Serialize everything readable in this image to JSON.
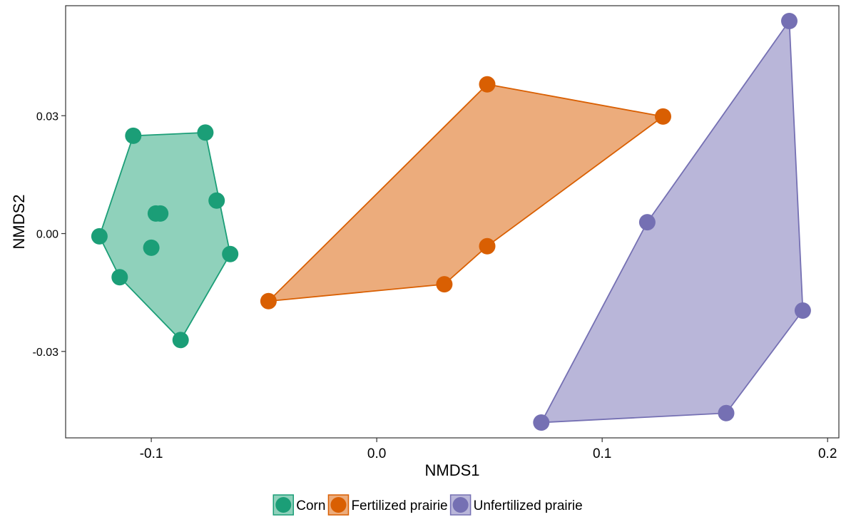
{
  "chart_data": {
    "type": "scatter",
    "title": "",
    "xlabel": "NMDS1",
    "ylabel": "NMDS2",
    "xlim": [
      -0.138,
      0.205
    ],
    "ylim": [
      -0.052,
      0.058
    ],
    "x_ticks": [
      -0.1,
      0.0,
      0.1,
      0.2
    ],
    "x_tick_labels": [
      "-0.1",
      "0.0",
      "0.1",
      "0.2"
    ],
    "y_ticks": [
      -0.03,
      0.0,
      0.03
    ],
    "y_tick_labels": [
      "-0.03",
      "0.00",
      "0.03"
    ],
    "grid": false,
    "legend_position": "bottom",
    "series": [
      {
        "name": "Corn",
        "color": "#1b9e77",
        "fill": "#8fd1bb",
        "points": [
          {
            "x": -0.123,
            "y": -0.0007
          },
          {
            "x": -0.108,
            "y": 0.0249
          },
          {
            "x": -0.076,
            "y": 0.0257
          },
          {
            "x": -0.071,
            "y": 0.0084
          },
          {
            "x": -0.065,
            "y": -0.0052
          },
          {
            "x": -0.087,
            "y": -0.0271
          },
          {
            "x": -0.114,
            "y": -0.0111
          },
          {
            "x": -0.1,
            "y": -0.0036
          },
          {
            "x": -0.098,
            "y": 0.0051
          },
          {
            "x": -0.096,
            "y": 0.0051
          }
        ],
        "hull": [
          {
            "x": -0.123,
            "y": -0.0007
          },
          {
            "x": -0.108,
            "y": 0.0249
          },
          {
            "x": -0.076,
            "y": 0.0257
          },
          {
            "x": -0.065,
            "y": -0.0052
          },
          {
            "x": -0.087,
            "y": -0.0271
          },
          {
            "x": -0.114,
            "y": -0.0111
          }
        ]
      },
      {
        "name": "Fertilized prairie",
        "color": "#d95f02",
        "fill": "#ecac7c",
        "points": [
          {
            "x": -0.048,
            "y": -0.0172
          },
          {
            "x": 0.049,
            "y": 0.038
          },
          {
            "x": 0.127,
            "y": 0.0298
          },
          {
            "x": 0.049,
            "y": -0.0032
          },
          {
            "x": 0.03,
            "y": -0.0129
          }
        ],
        "hull": [
          {
            "x": -0.048,
            "y": -0.0172
          },
          {
            "x": 0.049,
            "y": 0.038
          },
          {
            "x": 0.127,
            "y": 0.0298
          },
          {
            "x": 0.049,
            "y": -0.0032
          },
          {
            "x": 0.03,
            "y": -0.0129
          }
        ]
      },
      {
        "name": "Unfertilized prairie",
        "color": "#7570b3",
        "fill": "#b9b6d9",
        "points": [
          {
            "x": 0.183,
            "y": 0.0541
          },
          {
            "x": 0.12,
            "y": 0.0029
          },
          {
            "x": 0.073,
            "y": -0.0481
          },
          {
            "x": 0.155,
            "y": -0.0457
          },
          {
            "x": 0.189,
            "y": -0.0196
          }
        ],
        "hull": [
          {
            "x": 0.183,
            "y": 0.0541
          },
          {
            "x": 0.189,
            "y": -0.0196
          },
          {
            "x": 0.155,
            "y": -0.0457
          },
          {
            "x": 0.073,
            "y": -0.0481
          },
          {
            "x": 0.12,
            "y": 0.0029
          }
        ]
      }
    ]
  }
}
